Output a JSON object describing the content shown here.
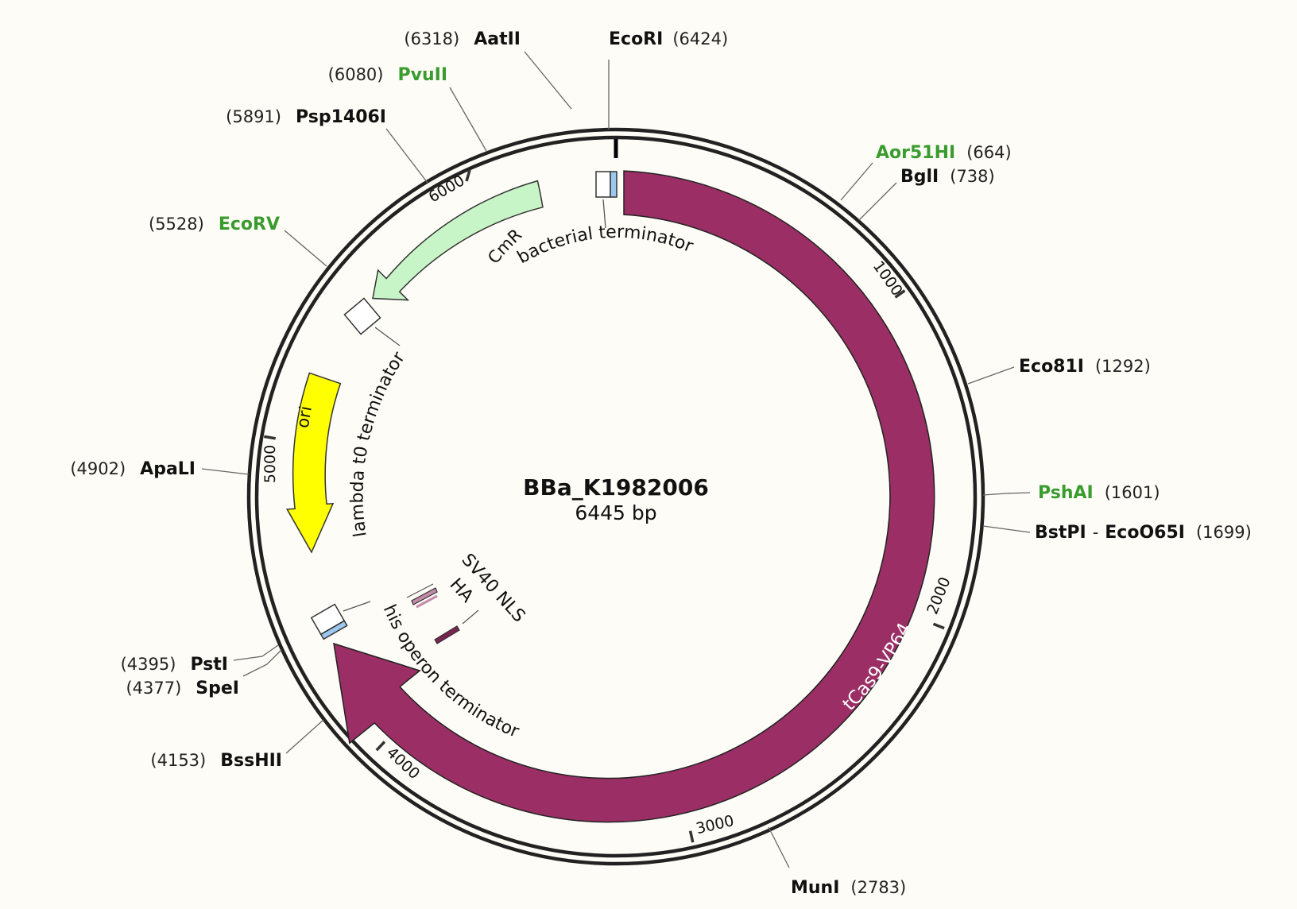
{
  "plasmid": {
    "name": "BBa_K1982006",
    "size_label": "6445 bp",
    "length_bp": 6445
  },
  "colors": {
    "background": "#fdfcf6",
    "backbone": "#222222",
    "cds_main": "#9b2f65",
    "cmr": "#c8f5c8",
    "ori": "#ffff00",
    "terminator": "#ffffff",
    "rbs_blue": "#9cc8ee",
    "green_site": "#3a9b2e"
  },
  "ticks": [
    "1000",
    "2000",
    "3000",
    "4000",
    "5000",
    "6000"
  ],
  "features": {
    "cds": "tCas9-VP64",
    "cmr": "CmR",
    "ori": "ori",
    "bacterial_terminator": "bacterial terminator",
    "lambda_terminator": "lambda t0 terminator",
    "his_terminator": "his operon terminator",
    "sv40_nls": "SV40 NLS",
    "ha": "HA"
  },
  "sites": {
    "aatii": {
      "name": "AatII",
      "pos": "(6318)"
    },
    "ecori": {
      "name": "EcoRI",
      "pos": "(6424)"
    },
    "pvuii": {
      "name": "PvuII",
      "pos": "(6080)"
    },
    "psp1406i": {
      "name": "Psp1406I",
      "pos": "(5891)"
    },
    "aor51hi": {
      "name": "Aor51HI",
      "pos": "(664)"
    },
    "bgli": {
      "name": "BglI",
      "pos": "(738)"
    },
    "ecorv": {
      "name": "EcoRV",
      "pos": "(5528)"
    },
    "eco81i": {
      "name": "Eco81I",
      "pos": "(1292)"
    },
    "apali": {
      "name": "ApaLI",
      "pos": "(4902)"
    },
    "pshai": {
      "name": "PshAI",
      "pos": "(1601)"
    },
    "bstpi": {
      "name": "BstPI",
      "sep": "-",
      "name2": "EcoO65I",
      "pos": "(1699)"
    },
    "psti": {
      "name": "PstI",
      "pos": "(4395)"
    },
    "spei": {
      "name": "SpeI",
      "pos": "(4377)"
    },
    "bsshii": {
      "name": "BssHII",
      "pos": "(4153)"
    },
    "muni": {
      "name": "MunI",
      "pos": "(2783)"
    }
  }
}
